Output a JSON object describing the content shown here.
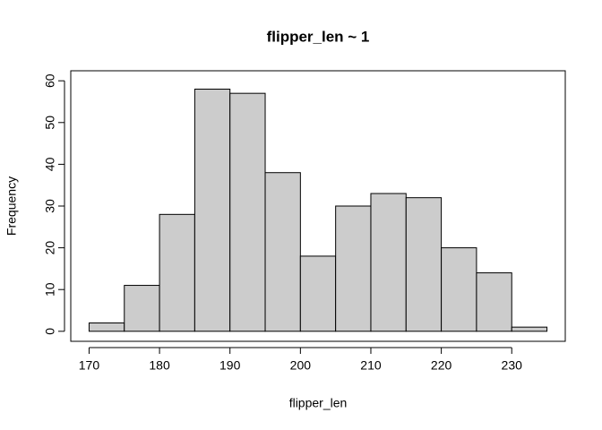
{
  "chart_data": {
    "type": "histogram",
    "title": "flipper_len ~ 1",
    "x_label": "flipper_len",
    "y_label": "Frequency",
    "bins": [
      170,
      175,
      180,
      185,
      190,
      195,
      200,
      205,
      210,
      215,
      220,
      225,
      230,
      235
    ],
    "values": [
      2,
      11,
      28,
      58,
      57,
      38,
      18,
      30,
      33,
      32,
      20,
      14,
      1
    ],
    "color": "#cccccc",
    "xlim": [
      167.4,
      237.6
    ],
    "xticks": [
      170,
      180,
      190,
      200,
      210,
      220,
      230
    ],
    "ylim": [
      -2.4,
      62.4
    ],
    "yticks": [
      0,
      10,
      20,
      30,
      40,
      50,
      60
    ]
  }
}
